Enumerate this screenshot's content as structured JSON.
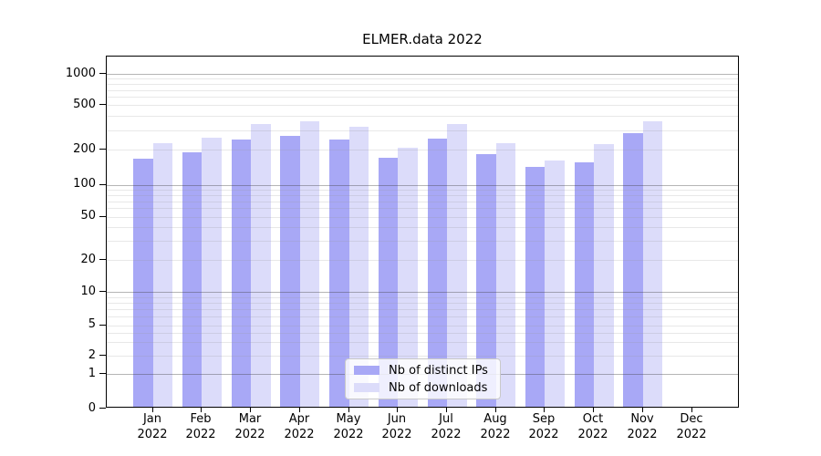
{
  "chart_data": {
    "type": "bar",
    "title": "ELMER.data 2022",
    "yscale": "symlog",
    "grid": true,
    "legend_position": "lower center",
    "categories": [
      "Jan",
      "Feb",
      "Mar",
      "Apr",
      "May",
      "Jun",
      "Jul",
      "Aug",
      "Sep",
      "Oct",
      "Nov",
      "Dec"
    ],
    "year_label": "2022",
    "series": [
      {
        "name": "Nb of distinct IPs",
        "color": "#a8a8f6",
        "values": [
          163,
          183,
          238,
          255,
          240,
          166,
          244,
          178,
          138,
          150,
          270,
          0
        ]
      },
      {
        "name": "Nb of downloads",
        "color": "#dcdcfa",
        "values": [
          220,
          248,
          330,
          348,
          310,
          200,
          325,
          222,
          155,
          216,
          345,
          0
        ]
      }
    ],
    "yticks": [
      0,
      1,
      2,
      5,
      10,
      20,
      50,
      100,
      200,
      500,
      1000
    ],
    "ylim": [
      0,
      1500
    ]
  }
}
